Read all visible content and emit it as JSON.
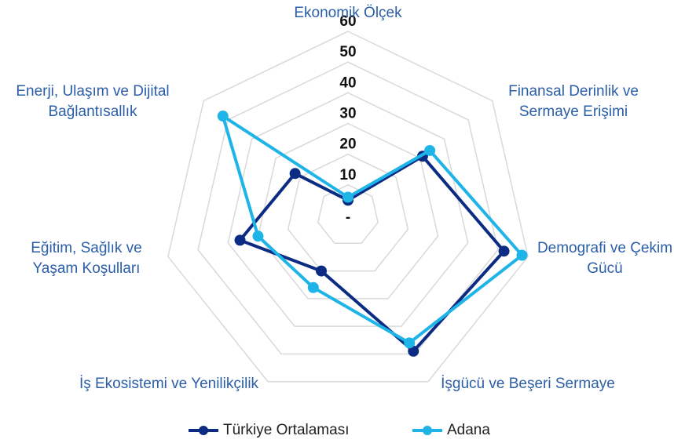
{
  "chart_data": {
    "type": "radar",
    "categories": [
      "Ekonomik Ölçek",
      "Finansal Derinlik ve Sermaye Erişimi",
      "Demografi ve Çekim Gücü",
      "İşgücü ve Beşeri Sermaye",
      "İş Ekosistemi ve Yenilikçilik",
      "Eğitim, Sağlık ve Yaşam Koşulları",
      "Enerji, Ulaşım ve Dijital Bağlantısallık"
    ],
    "series": [
      {
        "name": "Türkiye Ortalaması",
        "color": "#0c2c84",
        "values": [
          5,
          31,
          52,
          49,
          20,
          36,
          22
        ]
      },
      {
        "name": "Adana",
        "color": "#1fb4e8",
        "values": [
          6,
          34,
          58,
          46,
          26,
          30,
          52
        ]
      }
    ],
    "ylim": [
      0,
      60
    ],
    "yticks": [
      {
        "value": 0,
        "label": "-"
      },
      10,
      20,
      30,
      40,
      50,
      60
    ],
    "grid": true
  }
}
